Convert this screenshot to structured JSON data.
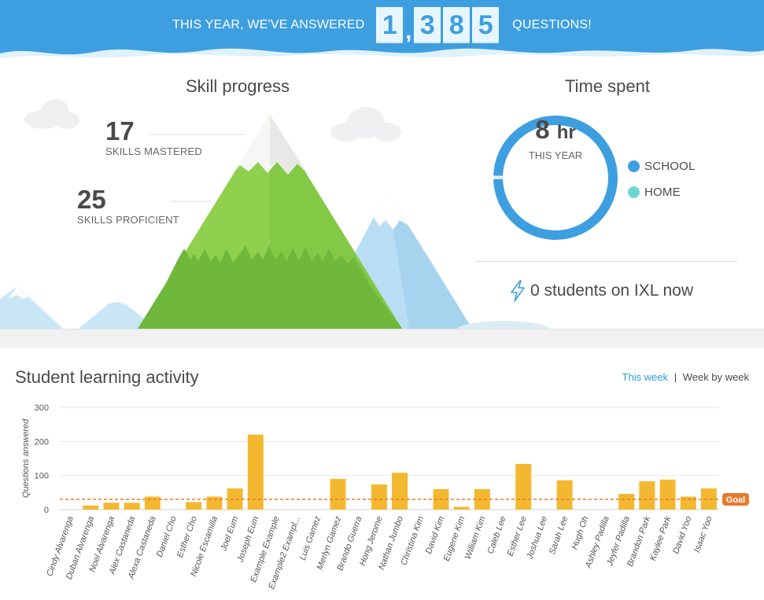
{
  "banner": {
    "prefix": "THIS YEAR, WE'VE ANSWERED",
    "digits": [
      "1",
      "3",
      "8",
      "5"
    ],
    "suffix": "QUESTIONS!"
  },
  "skill_progress": {
    "title": "Skill progress",
    "mastered": {
      "value": "17",
      "label": "SKILLS MASTERED"
    },
    "proficient": {
      "value": "25",
      "label": "SKILLS PROFICIENT"
    }
  },
  "time_spent": {
    "title": "Time spent",
    "value": "8",
    "unit": "hr",
    "sub": "THIS YEAR",
    "school_fraction": 0.99,
    "legend": [
      {
        "label": "SCHOOL",
        "color": "#3d9fe0"
      },
      {
        "label": "HOME",
        "color": "#6fd6cf"
      }
    ]
  },
  "online": {
    "text": "0 students on IXL now",
    "icon": "lightning-bolt-icon"
  },
  "activity": {
    "title": "Student learning activity",
    "toggle_active": "This week",
    "toggle_sep": "|",
    "toggle_other": "Week by week"
  },
  "chart_data": {
    "type": "bar",
    "ylabel": "Questions answered",
    "ylim": [
      0,
      300
    ],
    "yticks": [
      0,
      100,
      200,
      300
    ],
    "goal": 30,
    "goal_label": "Goal",
    "bar_color": "#f4b830",
    "goal_color": "#e87a2e",
    "categories": [
      "Cindy Alvarenga",
      "Duban Alvarenga",
      "Noel Alvarenga",
      "Alex Castaneda",
      "Alexa Castaneda",
      "Daniel Cho",
      "Esther Cho",
      "Nicole Escamilla",
      "Joel Eum",
      "Joseph Eum",
      "Example Example",
      "Example2 Exampl...",
      "Luis Gamez",
      "Merlyn Gamez",
      "Brando Guerra",
      "Hong Jerome",
      "Nathan Jumbo",
      "Christina Kim",
      "David Kim",
      "Eugene Kim",
      "William Kim",
      "Caleb Lee",
      "Esther Lee",
      "Joshua Lee",
      "Sarah Lee",
      "Hugh Oh",
      "Ashley Padilla",
      "Jeyfer Padilla",
      "Brandon Park",
      "Kaylee Park",
      "David Yoo",
      "Isaac Yoo"
    ],
    "values": [
      0,
      12,
      20,
      20,
      38,
      0,
      22,
      38,
      62,
      220,
      0,
      0,
      0,
      90,
      0,
      74,
      108,
      0,
      60,
      8,
      60,
      0,
      134,
      0,
      86,
      0,
      0,
      46,
      83,
      88,
      38,
      62
    ]
  }
}
